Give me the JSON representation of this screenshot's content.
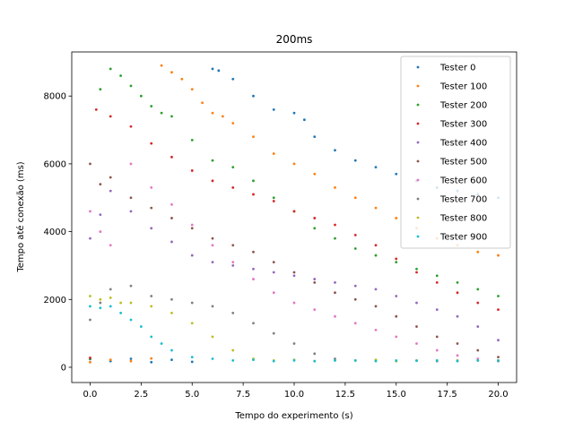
{
  "chart_data": {
    "type": "scatter",
    "title": "200ms",
    "xlabel": "Tempo do experimento (s)",
    "ylabel": "Tempo até conexão (ms)",
    "xlim": [
      -0.9,
      20.9
    ],
    "ylim": [
      -450,
      9300
    ],
    "xticks": [
      0.0,
      2.5,
      5.0,
      7.5,
      10.0,
      12.5,
      15.0,
      17.5,
      20.0
    ],
    "xtick_labels": [
      "0.0",
      "2.5",
      "5.0",
      "7.5",
      "10.0",
      "12.5",
      "15.0",
      "17.5",
      "20.0"
    ],
    "yticks": [
      0,
      2000,
      4000,
      6000,
      8000
    ],
    "ytick_labels": [
      "0",
      "2000",
      "4000",
      "6000",
      "8000"
    ],
    "grid": false,
    "legend_position": "top-right",
    "series": [
      {
        "name": "Tester 0",
        "color": "#1f77b4",
        "points": [
          [
            0.0,
            240
          ],
          [
            1.0,
            180
          ],
          [
            2.0,
            250
          ],
          [
            3.0,
            150
          ],
          [
            4.0,
            220
          ],
          [
            5.0,
            160
          ],
          [
            6.0,
            8800
          ],
          [
            6.3,
            8750
          ],
          [
            7.0,
            8500
          ],
          [
            8.0,
            8000
          ],
          [
            9.0,
            7600
          ],
          [
            10.0,
            7500
          ],
          [
            10.5,
            7300
          ],
          [
            11.0,
            6800
          ],
          [
            12.0,
            6400
          ],
          [
            13.0,
            6100
          ],
          [
            14.0,
            5900
          ],
          [
            15.0,
            5700
          ],
          [
            16.0,
            5500
          ],
          [
            17.0,
            5300
          ],
          [
            18.0,
            5200
          ],
          [
            19.0,
            5100
          ],
          [
            20.0,
            5000
          ]
        ]
      },
      {
        "name": "Tester 100",
        "color": "#ff7f0e",
        "points": [
          [
            0.0,
            150
          ],
          [
            1.0,
            220
          ],
          [
            2.0,
            180
          ],
          [
            3.0,
            260
          ],
          [
            3.5,
            8900
          ],
          [
            4.0,
            8700
          ],
          [
            4.5,
            8500
          ],
          [
            5.0,
            8200
          ],
          [
            5.5,
            7800
          ],
          [
            6.0,
            7500
          ],
          [
            6.5,
            7400
          ],
          [
            7.0,
            7200
          ],
          [
            8.0,
            6800
          ],
          [
            9.0,
            6300
          ],
          [
            10.0,
            6000
          ],
          [
            11.0,
            5700
          ],
          [
            12.0,
            5300
          ],
          [
            13.0,
            5000
          ],
          [
            14.0,
            4700
          ],
          [
            15.0,
            4400
          ],
          [
            16.0,
            4100
          ],
          [
            17.0,
            3800
          ],
          [
            18.0,
            3600
          ],
          [
            19.0,
            3400
          ],
          [
            20.0,
            3300
          ]
        ]
      },
      {
        "name": "Tester 200",
        "color": "#2ca02c",
        "points": [
          [
            0.0,
            250
          ],
          [
            0.5,
            8200
          ],
          [
            1.0,
            8800
          ],
          [
            1.5,
            8600
          ],
          [
            2.0,
            8300
          ],
          [
            2.5,
            8000
          ],
          [
            3.0,
            7700
          ],
          [
            3.5,
            7500
          ],
          [
            4.0,
            7400
          ],
          [
            5.0,
            6700
          ],
          [
            6.0,
            6100
          ],
          [
            7.0,
            5900
          ],
          [
            8.0,
            5500
          ],
          [
            9.0,
            5000
          ],
          [
            10.0,
            4600
          ],
          [
            11.0,
            4100
          ],
          [
            12.0,
            3800
          ],
          [
            13.0,
            3500
          ],
          [
            14.0,
            3300
          ],
          [
            15.0,
            3100
          ],
          [
            16.0,
            2900
          ],
          [
            17.0,
            2700
          ],
          [
            18.0,
            2500
          ],
          [
            19.0,
            2300
          ],
          [
            20.0,
            2100
          ]
        ]
      },
      {
        "name": "Tester 300",
        "color": "#d62728",
        "points": [
          [
            0.0,
            280
          ],
          [
            0.3,
            7600
          ],
          [
            1.0,
            7400
          ],
          [
            2.0,
            7100
          ],
          [
            3.0,
            6600
          ],
          [
            4.0,
            6200
          ],
          [
            5.0,
            5800
          ],
          [
            6.0,
            5500
          ],
          [
            7.0,
            5300
          ],
          [
            8.0,
            5100
          ],
          [
            9.0,
            4900
          ],
          [
            10.0,
            4600
          ],
          [
            11.0,
            4400
          ],
          [
            12.0,
            4200
          ],
          [
            13.0,
            3900
          ],
          [
            14.0,
            3600
          ],
          [
            15.0,
            3200
          ],
          [
            16.0,
            2800
          ],
          [
            17.0,
            2500
          ],
          [
            18.0,
            2200
          ],
          [
            19.0,
            1900
          ],
          [
            20.0,
            1700
          ]
        ]
      },
      {
        "name": "Tester 400",
        "color": "#9467bd",
        "points": [
          [
            0.0,
            3800
          ],
          [
            0.5,
            4500
          ],
          [
            1.0,
            5200
          ],
          [
            2.0,
            4600
          ],
          [
            3.0,
            4100
          ],
          [
            4.0,
            3700
          ],
          [
            5.0,
            3300
          ],
          [
            6.0,
            3100
          ],
          [
            7.0,
            3000
          ],
          [
            8.0,
            2900
          ],
          [
            9.0,
            2800
          ],
          [
            10.0,
            2700
          ],
          [
            11.0,
            2600
          ],
          [
            12.0,
            2500
          ],
          [
            13.0,
            2400
          ],
          [
            14.0,
            2300
          ],
          [
            15.0,
            2100
          ],
          [
            16.0,
            1900
          ],
          [
            17.0,
            1700
          ],
          [
            18.0,
            1500
          ],
          [
            19.0,
            1200
          ],
          [
            20.0,
            800
          ]
        ]
      },
      {
        "name": "Tester 500",
        "color": "#8c564b",
        "points": [
          [
            0.0,
            6000
          ],
          [
            0.5,
            5400
          ],
          [
            1.0,
            5600
          ],
          [
            2.0,
            5000
          ],
          [
            3.0,
            4700
          ],
          [
            4.0,
            4400
          ],
          [
            5.0,
            4100
          ],
          [
            6.0,
            3800
          ],
          [
            7.0,
            3600
          ],
          [
            8.0,
            3400
          ],
          [
            9.0,
            3100
          ],
          [
            10.0,
            2800
          ],
          [
            11.0,
            2500
          ],
          [
            12.0,
            2200
          ],
          [
            13.0,
            2000
          ],
          [
            14.0,
            1800
          ],
          [
            15.0,
            1500
          ],
          [
            16.0,
            1200
          ],
          [
            17.0,
            900
          ],
          [
            18.0,
            700
          ],
          [
            19.0,
            500
          ],
          [
            20.0,
            300
          ]
        ]
      },
      {
        "name": "Tester 600",
        "color": "#e377c2",
        "points": [
          [
            0.0,
            4600
          ],
          [
            0.5,
            4000
          ],
          [
            1.0,
            3600
          ],
          [
            2.0,
            6000
          ],
          [
            3.0,
            5300
          ],
          [
            4.0,
            4800
          ],
          [
            5.0,
            4200
          ],
          [
            6.0,
            3600
          ],
          [
            7.0,
            3100
          ],
          [
            8.0,
            2600
          ],
          [
            9.0,
            2200
          ],
          [
            10.0,
            1900
          ],
          [
            11.0,
            1700
          ],
          [
            12.0,
            1500
          ],
          [
            13.0,
            1300
          ],
          [
            14.0,
            1100
          ],
          [
            15.0,
            900
          ],
          [
            16.0,
            700
          ],
          [
            17.0,
            500
          ],
          [
            18.0,
            350
          ],
          [
            19.0,
            250
          ],
          [
            20.0,
            200
          ]
        ]
      },
      {
        "name": "Tester 700",
        "color": "#7f7f7f",
        "points": [
          [
            0.0,
            1400
          ],
          [
            0.5,
            1900
          ],
          [
            1.0,
            2300
          ],
          [
            2.0,
            2400
          ],
          [
            3.0,
            2100
          ],
          [
            4.0,
            2000
          ],
          [
            5.0,
            1900
          ],
          [
            6.0,
            1800
          ],
          [
            7.0,
            1600
          ],
          [
            8.0,
            1300
          ],
          [
            9.0,
            1000
          ],
          [
            10.0,
            700
          ],
          [
            11.0,
            400
          ],
          [
            12.0,
            250
          ],
          [
            13.0,
            200
          ],
          [
            14.0,
            200
          ],
          [
            15.0,
            180
          ],
          [
            16.0,
            200
          ],
          [
            17.0,
            180
          ],
          [
            18.0,
            200
          ],
          [
            19.0,
            200
          ],
          [
            20.0,
            180
          ]
        ]
      },
      {
        "name": "Tester 800",
        "color": "#bcbd22",
        "points": [
          [
            0.0,
            2100
          ],
          [
            0.5,
            2000
          ],
          [
            1.0,
            2050
          ],
          [
            1.5,
            1900
          ],
          [
            2.0,
            1900
          ],
          [
            3.0,
            1800
          ],
          [
            4.0,
            1600
          ],
          [
            5.0,
            1300
          ],
          [
            6.0,
            900
          ],
          [
            7.0,
            500
          ],
          [
            8.0,
            250
          ],
          [
            9.0,
            200
          ],
          [
            10.0,
            220
          ],
          [
            11.0,
            180
          ],
          [
            12.0,
            200
          ],
          [
            13.0,
            200
          ],
          [
            14.0,
            220
          ],
          [
            15.0,
            180
          ],
          [
            16.0,
            200
          ],
          [
            17.0,
            200
          ],
          [
            18.0,
            190
          ],
          [
            19.0,
            200
          ],
          [
            20.0,
            200
          ]
        ]
      },
      {
        "name": "Tester 900",
        "color": "#17becf",
        "points": [
          [
            0.0,
            1800
          ],
          [
            0.5,
            1750
          ],
          [
            1.0,
            1800
          ],
          [
            1.5,
            1600
          ],
          [
            2.0,
            1400
          ],
          [
            2.5,
            1200
          ],
          [
            3.0,
            900
          ],
          [
            3.5,
            700
          ],
          [
            4.0,
            500
          ],
          [
            5.0,
            300
          ],
          [
            6.0,
            250
          ],
          [
            7.0,
            200
          ],
          [
            8.0,
            220
          ],
          [
            9.0,
            180
          ],
          [
            10.0,
            200
          ],
          [
            11.0,
            180
          ],
          [
            12.0,
            200
          ],
          [
            13.0,
            200
          ],
          [
            14.0,
            180
          ],
          [
            15.0,
            200
          ],
          [
            16.0,
            190
          ],
          [
            17.0,
            200
          ],
          [
            18.0,
            180
          ],
          [
            19.0,
            200
          ],
          [
            20.0,
            200
          ]
        ]
      }
    ]
  }
}
